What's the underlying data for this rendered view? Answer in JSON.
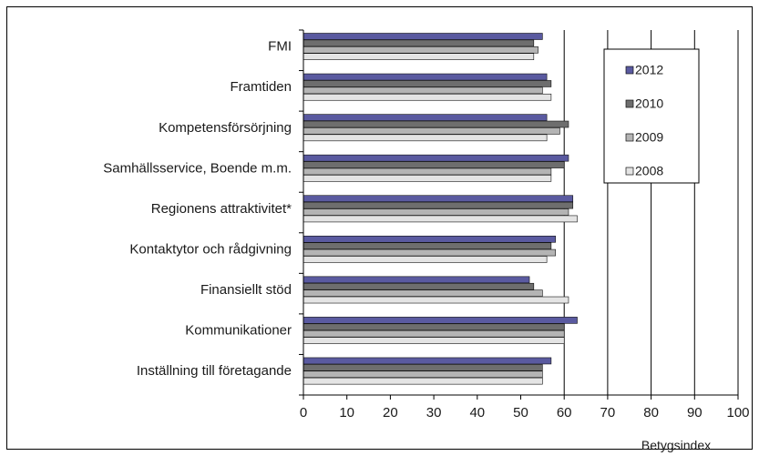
{
  "chart_data": {
    "type": "bar",
    "orientation": "horizontal",
    "categories": [
      "FMI",
      "Framtiden",
      "Kompetensförsörjning",
      "Samhällsservice, Boende m.m.",
      "Regionens attraktivitet*",
      "Kontaktytor och rådgivning",
      "Finansiellt stöd",
      "Kommunikationer",
      "Inställning till företagande"
    ],
    "series": [
      {
        "name": "2012",
        "color": "#5a5aa0",
        "values": [
          55,
          56,
          56,
          61,
          62,
          58,
          52,
          63,
          57
        ]
      },
      {
        "name": "2010",
        "color": "#6e6e6e",
        "values": [
          53,
          57,
          61,
          60,
          62,
          57,
          53,
          60,
          55
        ]
      },
      {
        "name": "2009",
        "color": "#b4b4b4",
        "values": [
          54,
          55,
          59,
          57,
          61,
          58,
          55,
          60,
          55
        ]
      },
      {
        "name": "2008",
        "color": "#e4e4e4",
        "values": [
          53,
          57,
          56,
          57,
          63,
          56,
          61,
          60,
          55
        ]
      }
    ],
    "xlabel": "Betygsindex",
    "xlim": [
      0,
      100
    ],
    "xticks": [
      "0",
      "10",
      "20",
      "30",
      "40",
      "50",
      "60",
      "70",
      "80",
      "90",
      "100"
    ],
    "grid": "vertical",
    "legend_position": "top-right"
  }
}
